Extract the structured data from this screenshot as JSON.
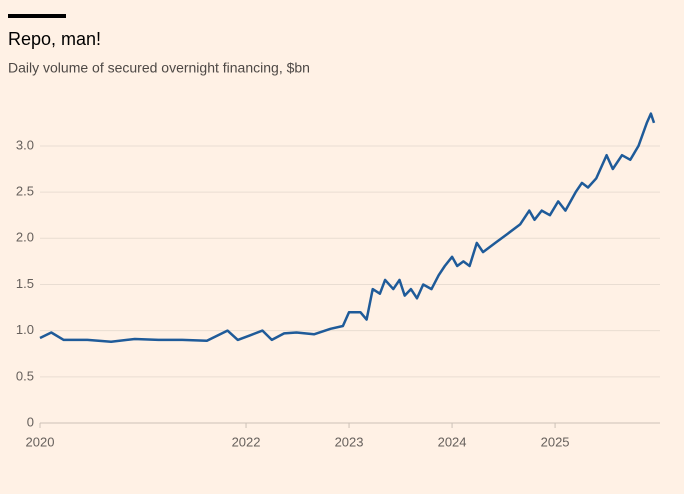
{
  "chart_data": {
    "type": "line",
    "title": "Repo, man!",
    "subtitle": "Daily volume of secured overnight financing, $bn",
    "x": [
      2020.0,
      2020.11,
      2020.23,
      2020.46,
      2020.69,
      2020.92,
      2021.15,
      2021.38,
      2021.62,
      2021.82,
      2021.92,
      2022.04,
      2022.16,
      2022.25,
      2022.37,
      2022.49,
      2022.66,
      2022.82,
      2022.94,
      2023.0,
      2023.11,
      2023.17,
      2023.23,
      2023.3,
      2023.35,
      2023.43,
      2023.49,
      2023.54,
      2023.6,
      2023.66,
      2023.72,
      2023.8,
      2023.87,
      2023.93,
      2024.0,
      2024.05,
      2024.11,
      2024.17,
      2024.24,
      2024.3,
      2024.42,
      2024.54,
      2024.66,
      2024.75,
      2024.8,
      2024.87,
      2024.95,
      2025.03,
      2025.1,
      2025.2,
      2025.26,
      2025.32,
      2025.4,
      2025.5,
      2025.56,
      2025.65,
      2025.73,
      2025.81,
      2025.89,
      2025.93,
      2025.96
    ],
    "values": [
      0.92,
      0.98,
      0.9,
      0.9,
      0.88,
      0.91,
      0.9,
      0.9,
      0.89,
      1.0,
      0.9,
      0.95,
      1.0,
      0.9,
      0.97,
      0.98,
      0.96,
      1.02,
      1.05,
      1.2,
      1.2,
      1.12,
      1.45,
      1.4,
      1.55,
      1.45,
      1.55,
      1.38,
      1.45,
      1.35,
      1.5,
      1.45,
      1.6,
      1.7,
      1.8,
      1.7,
      1.75,
      1.7,
      1.95,
      1.85,
      1.95,
      2.05,
      2.15,
      2.3,
      2.2,
      2.3,
      2.25,
      2.4,
      2.3,
      2.5,
      2.6,
      2.55,
      2.65,
      2.9,
      2.75,
      2.9,
      2.85,
      3.0,
      3.25,
      3.35,
      3.25
    ],
    "color": "#1f5b99",
    "xlim": [
      2020,
      2025.97
    ],
    "xticks": [
      2020,
      2022,
      2023,
      2024,
      2025
    ],
    "ylim": [
      0,
      3.4
    ],
    "yticks": [
      0,
      0.5,
      {
        "value": 1,
        "label": "1.0"
      },
      1.5,
      {
        "value": 2,
        "label": "2.0"
      },
      2.5,
      {
        "value": 3,
        "label": "3.0"
      }
    ],
    "grid": true
  }
}
